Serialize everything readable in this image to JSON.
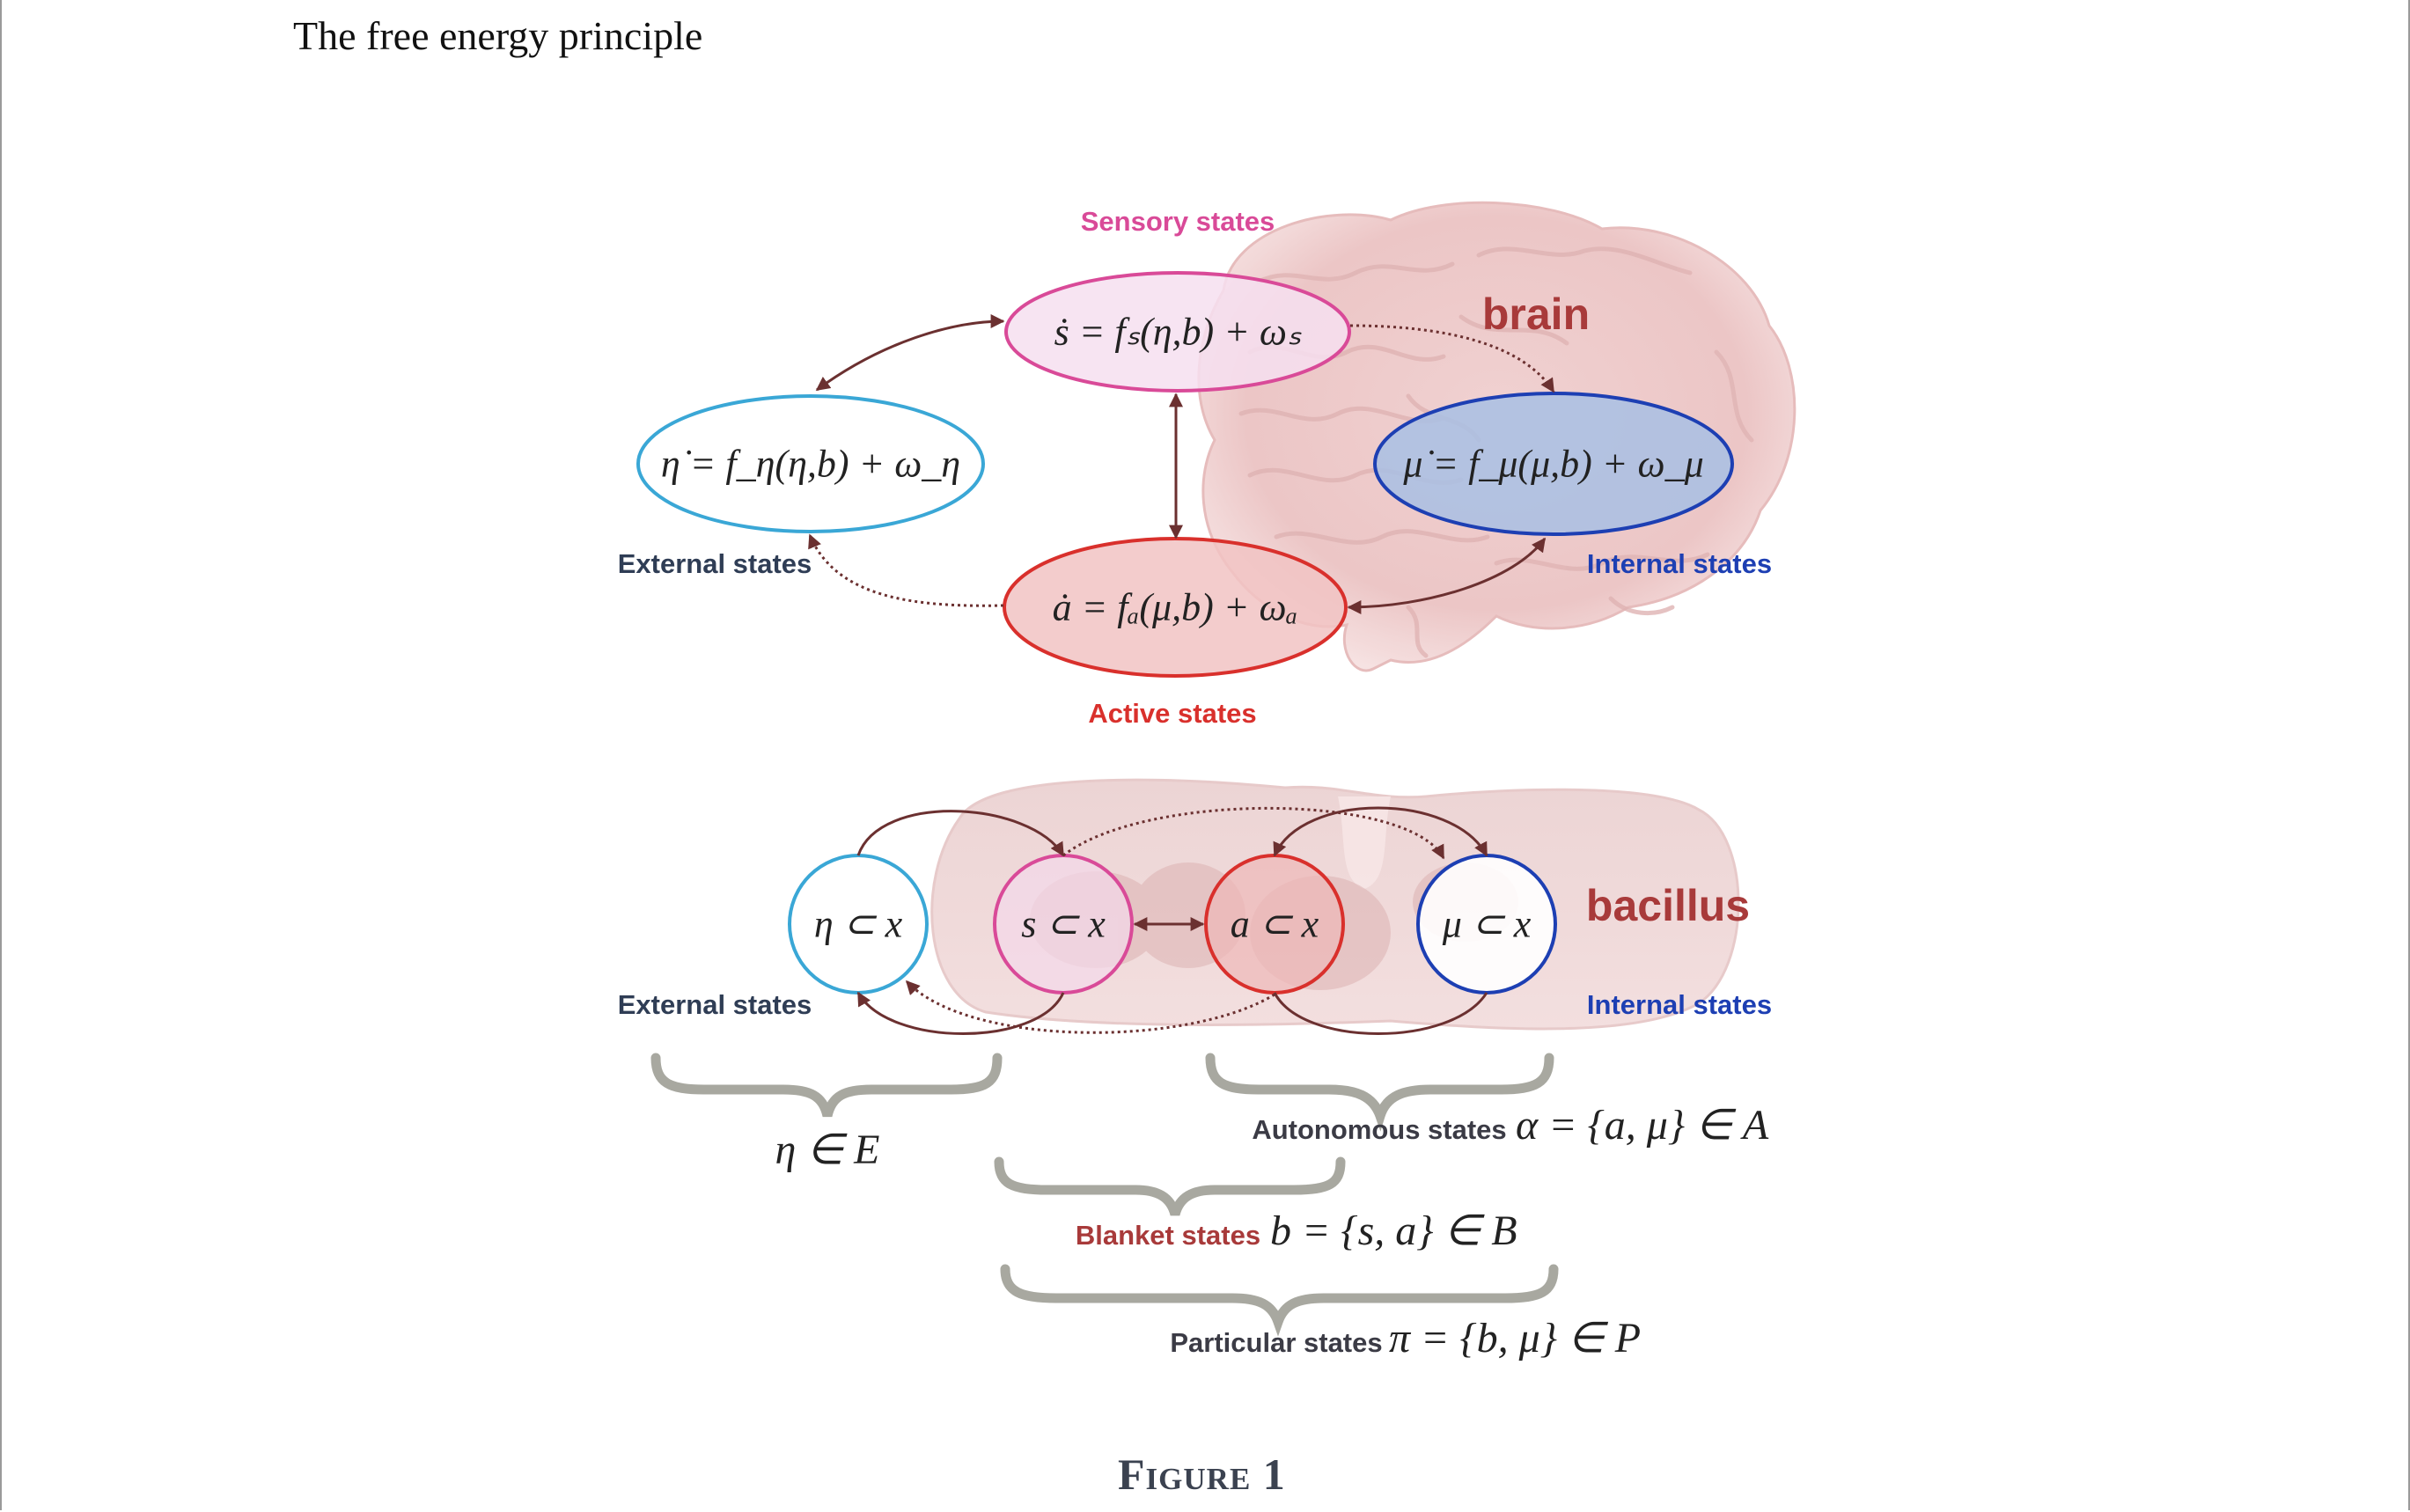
{
  "page": {
    "running_title": "The free energy principle",
    "figure_caption": "Figure 1"
  },
  "brain_panel": {
    "image_label": "brain",
    "sensory": {
      "label": "Sensory states",
      "equation": "ṡ = fₛ(η,b) + ωₛ",
      "color": "#d94a98"
    },
    "external": {
      "label": "External states",
      "equation": "η̇ = f_η(η,b) + ω_η",
      "color": "#3aa7d6"
    },
    "internal": {
      "label": "Internal states",
      "equation": "μ̇ = f_μ(μ,b) + ω_μ",
      "color": "#1d3fb3"
    },
    "active": {
      "label": "Active states",
      "equation": "ȧ = fₐ(μ,b) + ωₐ",
      "color": "#d9302c"
    }
  },
  "bacillus_panel": {
    "image_label": "bacillus",
    "external_label": "External states",
    "internal_label": "Internal states",
    "nodes": [
      {
        "name": "external",
        "text": "η ⊂ x",
        "color": "#3aa7d6"
      },
      {
        "name": "sensory",
        "text": "s ⊂ x",
        "color": "#d94a98"
      },
      {
        "name": "active",
        "text": "a ⊂ x",
        "color": "#d9302c"
      },
      {
        "name": "internal",
        "text": "μ ⊂ x",
        "color": "#1d3fb3"
      }
    ]
  },
  "partitions": {
    "external": {
      "formula": "η ∈ E"
    },
    "autonomous": {
      "label": "Autonomous states",
      "formula": "α = {a, μ} ∈ A"
    },
    "blanket": {
      "label": "Blanket states",
      "formula": "b = {s, a} ∈ B",
      "color": "#a83a3a"
    },
    "particular": {
      "label": "Particular states",
      "formula": "π = {b, μ} ∈ P"
    }
  },
  "colors": {
    "arrow": "#6b3030",
    "brain_tint": "#f1d3d3",
    "brace": "#a8a8a0",
    "label_gray": "#3b3b45",
    "internal_label": "#1d3fb3",
    "brain_label": "#a83a3a",
    "external_label": "#2f3d55"
  }
}
